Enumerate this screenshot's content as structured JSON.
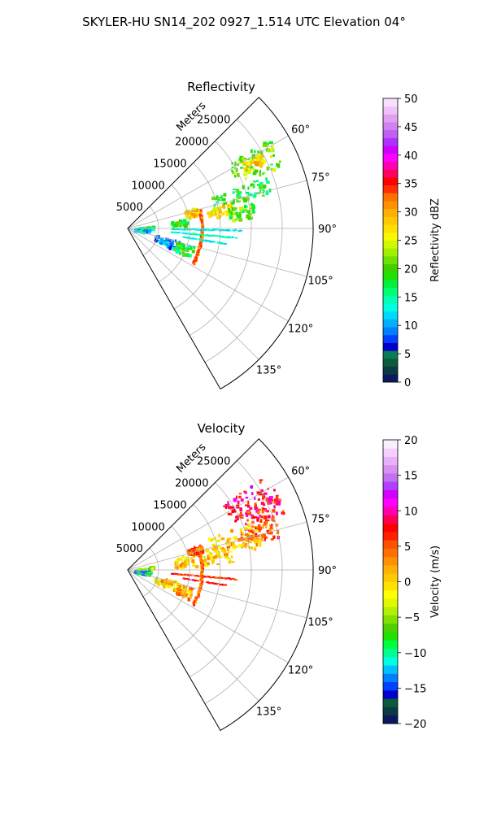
{
  "suptitle": "SKYLER-HU  SN14_202  0927_1.514 UTC Elevation 04°",
  "chart_data": [
    {
      "type": "polar-sector",
      "title": "Reflectivity",
      "radial_axis_label": "Meters",
      "radial_range": [
        0,
        30000
      ],
      "radial_ticks": [
        5000,
        10000,
        15000,
        20000,
        25000
      ],
      "radial_tick_labels": [
        "5000",
        "10000",
        "15000",
        "20000",
        "25000"
      ],
      "azimuth_range_deg": [
        45,
        150
      ],
      "azimuth_ticks_deg": [
        60,
        75,
        90,
        105,
        120,
        135
      ],
      "azimuth_tick_labels": [
        "60°",
        "75°",
        "90°",
        "105°",
        "120°",
        "135°"
      ],
      "grid": true,
      "colorbar": {
        "label": "Reflectivity dBZ",
        "range": [
          0,
          50
        ],
        "ticks": [
          0,
          5,
          10,
          15,
          20,
          25,
          30,
          35,
          40,
          45,
          50
        ],
        "tick_labels": [
          "0",
          "5",
          "10",
          "15",
          "20",
          "25",
          "30",
          "35",
          "40",
          "45",
          "50"
        ],
        "colors": [
          "#0b1a5e",
          "#0a3a44",
          "#0b5a3a",
          "#0a7a5a",
          "#0000c8",
          "#0040ff",
          "#0080ff",
          "#00b0ff",
          "#00d8ff",
          "#00ffe0",
          "#00ffb0",
          "#00ff70",
          "#00f040",
          "#20e000",
          "#40d000",
          "#70e000",
          "#a0f000",
          "#d0f800",
          "#f8f800",
          "#ffe000",
          "#ffc800",
          "#ffb000",
          "#ff9000",
          "#ff7000",
          "#ff3000",
          "#ff0000",
          "#ff0060",
          "#ff00b0",
          "#ff00ff",
          "#d000ff",
          "#b030ff",
          "#c060f0",
          "#d080f0",
          "#e0a0f0",
          "#f0c0f8",
          "#f8e0fc"
        ]
      },
      "echo_regions": [
        {
          "az": [
            57,
            68
          ],
          "r": [
            19000,
            27000
          ],
          "value": 21
        },
        {
          "az": [
            60,
            64
          ],
          "r": [
            21000,
            25000
          ],
          "value": 27
        },
        {
          "az": [
            69,
            76
          ],
          "r": [
            14000,
            24000
          ],
          "value": 18
        },
        {
          "az": [
            72,
            79
          ],
          "r": [
            9500,
            11500
          ],
          "value": 28
        },
        {
          "az": [
            76,
            82
          ],
          "r": [
            13000,
            17000
          ],
          "value": 27
        },
        {
          "az": [
            80,
            86
          ],
          "r": [
            7000,
            9500
          ],
          "value": 19
        },
        {
          "az": [
            78,
            85
          ],
          "r": [
            16500,
            20500
          ],
          "value": 20
        },
        {
          "az": [
            83,
            90
          ],
          "r": [
            1000,
            4000
          ],
          "value": 17
        },
        {
          "az": [
            92,
            100
          ],
          "r": [
            1000,
            3500
          ],
          "value": 12
        },
        {
          "az": [
            102,
            114
          ],
          "r": [
            4500,
            8500
          ],
          "value": 9
        },
        {
          "az": [
            105,
            115
          ],
          "r": [
            8000,
            11000
          ],
          "value": 18
        }
      ],
      "ring_echo": {
        "r": 12000,
        "az": [
          76,
          118
        ],
        "value": 33
      },
      "radial_lines": [
        {
          "az": 91,
          "r": [
            7000,
            18500
          ],
          "value": 13
        },
        {
          "az": 95,
          "r": [
            7000,
            17500
          ],
          "value": 14
        },
        {
          "az": 99,
          "r": [
            9000,
            16000
          ],
          "value": 13
        }
      ]
    },
    {
      "type": "polar-sector",
      "title": "Velocity",
      "radial_axis_label": "Meters",
      "radial_range": [
        0,
        30000
      ],
      "radial_ticks": [
        5000,
        10000,
        15000,
        20000,
        25000
      ],
      "radial_tick_labels": [
        "5000",
        "10000",
        "15000",
        "20000",
        "25000"
      ],
      "azimuth_range_deg": [
        45,
        150
      ],
      "azimuth_ticks_deg": [
        60,
        75,
        90,
        105,
        120,
        135
      ],
      "azimuth_tick_labels": [
        "60°",
        "75°",
        "90°",
        "105°",
        "120°",
        "135°"
      ],
      "grid": true,
      "colorbar": {
        "label": "Velocity (m/s)",
        "range": [
          -20,
          20
        ],
        "ticks": [
          -20,
          -15,
          -10,
          -5,
          0,
          5,
          10,
          15,
          20
        ],
        "tick_labels": [
          "−20",
          "−15",
          "−10",
          "−5",
          "0",
          "5",
          "10",
          "15",
          "20"
        ],
        "colors": [
          "#0b1a5e",
          "#0a3a44",
          "#0b5a3a",
          "#0000c8",
          "#0040ff",
          "#0080ff",
          "#00c0ff",
          "#00ffe0",
          "#00ff90",
          "#00ff40",
          "#20e000",
          "#50d000",
          "#80e000",
          "#b0f000",
          "#e0f800",
          "#ffff00",
          "#ffe000",
          "#ffc800",
          "#ffb000",
          "#ff9000",
          "#ff7000",
          "#ff5000",
          "#ff2000",
          "#ff0000",
          "#ff0050",
          "#ff00b0",
          "#ff00ff",
          "#d000ff",
          "#b040ff",
          "#c070f0",
          "#d890f0",
          "#e8b0f8",
          "#f4d0fc",
          "#faeefe"
        ]
      },
      "echo_regions": [
        {
          "az": [
            55,
            65
          ],
          "r": [
            18500,
            27000
          ],
          "value": 9
        },
        {
          "az": [
            62,
            70
          ],
          "r": [
            20000,
            27000
          ],
          "value": 7
        },
        {
          "az": [
            70,
            78
          ],
          "r": [
            19000,
            25000
          ],
          "value": 5
        },
        {
          "az": [
            68,
            80
          ],
          "r": [
            14000,
            22000
          ],
          "value": 1
        },
        {
          "az": [
            74,
            86
          ],
          "r": [
            7500,
            17000
          ],
          "value": 0
        },
        {
          "az": [
            70,
            76
          ],
          "r": [
            10000,
            12500
          ],
          "value": 5
        },
        {
          "az": [
            80,
            90
          ],
          "r": [
            1000,
            4000
          ],
          "value": -4
        },
        {
          "az": [
            92,
            100
          ],
          "r": [
            1000,
            3500
          ],
          "value": -11
        },
        {
          "az": [
            102,
            114
          ],
          "r": [
            4500,
            8500
          ],
          "value": 0
        },
        {
          "az": [
            105,
            115
          ],
          "r": [
            8000,
            11000
          ],
          "value": 2
        }
      ],
      "ring_echo": {
        "r": 12000,
        "az": [
          74,
          118
        ],
        "value": 4
      },
      "radial_lines": [
        {
          "az": 95,
          "r": [
            7000,
            17500
          ],
          "value": 6
        },
        {
          "az": 99,
          "r": [
            9000,
            16000
          ],
          "value": 7
        }
      ]
    }
  ]
}
